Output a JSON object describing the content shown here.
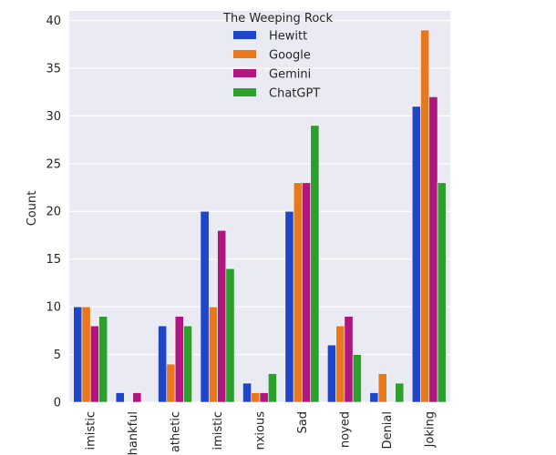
{
  "chart_data": {
    "type": "bar",
    "title": "",
    "xlabel": "",
    "ylabel": "Count",
    "ylim": [
      0,
      41
    ],
    "yticks": [
      0,
      5,
      10,
      15,
      20,
      25,
      30,
      35,
      40
    ],
    "grid": true,
    "categories": [
      "Optimistic",
      "Thankful",
      "Empathetic",
      "Pessimistic",
      "Anxious",
      "Sad",
      "Annoyed",
      "Denial",
      "Joking"
    ],
    "category_labels_visible": [
      "imistic",
      "hankful",
      "athetic",
      "imistic",
      "nxious",
      "Sad",
      "noyed",
      "Denial",
      "Joking"
    ],
    "legend": {
      "title": "The Weeping Rock",
      "placement": "top-center"
    },
    "series": [
      {
        "name": "Hewitt",
        "color": "#1f45c9",
        "values": [
          10,
          1,
          8,
          20,
          2,
          20,
          6,
          1,
          31
        ]
      },
      {
        "name": "Google",
        "color": "#e8781e",
        "values": [
          10,
          0,
          4,
          10,
          1,
          23,
          8,
          3,
          39
        ]
      },
      {
        "name": "Gemini",
        "color": "#b0177e",
        "values": [
          8,
          1,
          9,
          18,
          1,
          23,
          9,
          0,
          32
        ]
      },
      {
        "name": "ChatGPT",
        "color": "#2ca02c",
        "values": [
          9,
          0,
          8,
          14,
          3,
          29,
          5,
          2,
          23
        ]
      }
    ]
  }
}
